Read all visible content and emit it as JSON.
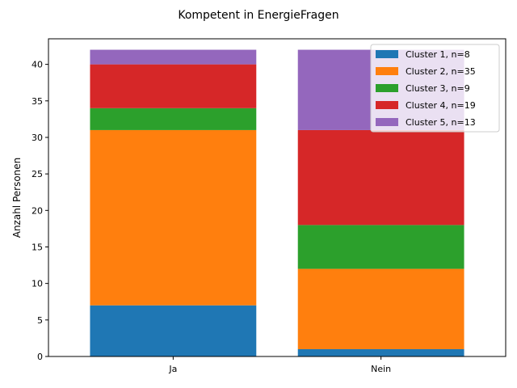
{
  "chart_data": {
    "type": "bar",
    "stacked": true,
    "title": "Kompetent in EnergieFragen",
    "xlabel": "",
    "ylabel": "Anzahl Personen",
    "categories": [
      "Ja",
      "Nein"
    ],
    "ylim": [
      0,
      43.5
    ],
    "yticks": [
      0,
      5,
      10,
      15,
      20,
      25,
      30,
      35,
      40
    ],
    "grid": false,
    "legend_position": "top-right",
    "series": [
      {
        "name": "Cluster 1, n=8",
        "values": [
          7,
          1
        ],
        "color": "#1f77b4"
      },
      {
        "name": "Cluster 2, n=35",
        "values": [
          24,
          11
        ],
        "color": "#ff7f0e"
      },
      {
        "name": "Cluster 3, n=9",
        "values": [
          3,
          6
        ],
        "color": "#2ca02c"
      },
      {
        "name": "Cluster 4, n=19",
        "values": [
          6,
          13
        ],
        "color": "#d62728"
      },
      {
        "name": "Cluster 5, n=13",
        "values": [
          2,
          11
        ],
        "color": "#9467bd"
      }
    ]
  }
}
